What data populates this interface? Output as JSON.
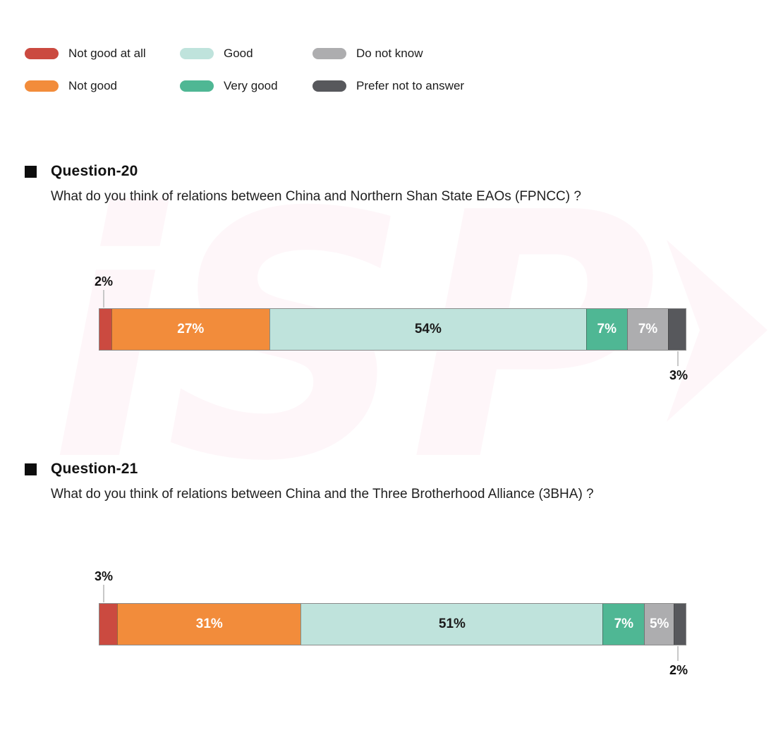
{
  "colors": {
    "not_good_at_all": "#CB4A40",
    "not_good": "#F28C3B",
    "good": "#BFE3DC",
    "very_good": "#4FB794",
    "do_not_know": "#ADADAF",
    "prefer_not_to_answer": "#57585C",
    "callout_tick": "#C8C8C8",
    "text": "#1B1B1B",
    "watermark_pink": "#E24A81"
  },
  "watermark": {
    "text": "iSP"
  },
  "legend": {
    "items": [
      {
        "label": "Not good at all",
        "color": "#CB4A40"
      },
      {
        "label": "Good",
        "color": "#BFE3DC"
      },
      {
        "label": "Do not know",
        "color": "#ADADAF"
      },
      {
        "label": "Not good",
        "color": "#F28C3B"
      },
      {
        "label": "Very good",
        "color": "#4FB794"
      },
      {
        "label": "Prefer not to answer",
        "color": "#57585C"
      }
    ]
  },
  "chart_data": [
    {
      "type": "stacked-bar-horizontal",
      "title": "Question-20",
      "question": "What do you think of  relations between China and Northern Shan State EAOs (FPNCC) ?",
      "xlim": [
        0,
        100
      ],
      "left_callout": "2%",
      "right_callout": "3%",
      "categories": [
        "Not good at all",
        "Not good",
        "Good",
        "Very good",
        "Do not know",
        "Prefer not to answer"
      ],
      "values": [
        2,
        27,
        54,
        7,
        7,
        3
      ],
      "segments": [
        {
          "category": "Not good at all",
          "value": 2,
          "label": "2%",
          "color": "#CB4A40",
          "text_color": "#FFFFFF",
          "label_placement": "above-left"
        },
        {
          "category": "Not good",
          "value": 27,
          "label": "27%",
          "color": "#F28C3B",
          "text_color": "#FFFFFF",
          "label_placement": "inside"
        },
        {
          "category": "Good",
          "value": 54,
          "label": "54%",
          "color": "#BFE3DC",
          "text_color": "#1B1B1B",
          "label_placement": "inside"
        },
        {
          "category": "Very good",
          "value": 7,
          "label": "7%",
          "color": "#4FB794",
          "text_color": "#FFFFFF",
          "label_placement": "inside"
        },
        {
          "category": "Do not know",
          "value": 7,
          "label": "7%",
          "color": "#ADADAF",
          "text_color": "#FFFFFF",
          "label_placement": "inside"
        },
        {
          "category": "Prefer not to answer",
          "value": 3,
          "label": "3%",
          "color": "#57585C",
          "text_color": "#FFFFFF",
          "label_placement": "below-right"
        }
      ]
    },
    {
      "type": "stacked-bar-horizontal",
      "title": "Question-21",
      "question": "What do you think of relations between China and the Three Brotherhood Alliance (3BHA) ?",
      "xlim": [
        0,
        100
      ],
      "left_callout": "3%",
      "right_callout": "2%",
      "categories": [
        "Not good at all",
        "Not good",
        "Good",
        "Very good",
        "Do not know",
        "Prefer not to answer"
      ],
      "values": [
        3,
        31,
        51,
        7,
        5,
        2
      ],
      "segments": [
        {
          "category": "Not good at all",
          "value": 3,
          "label": "3%",
          "color": "#CB4A40",
          "text_color": "#FFFFFF",
          "label_placement": "above-left"
        },
        {
          "category": "Not good",
          "value": 31,
          "label": "31%",
          "color": "#F28C3B",
          "text_color": "#FFFFFF",
          "label_placement": "inside"
        },
        {
          "category": "Good",
          "value": 51,
          "label": "51%",
          "color": "#BFE3DC",
          "text_color": "#1B1B1B",
          "label_placement": "inside"
        },
        {
          "category": "Very good",
          "value": 7,
          "label": "7%",
          "color": "#4FB794",
          "text_color": "#FFFFFF",
          "label_placement": "inside"
        },
        {
          "category": "Do not know",
          "value": 5,
          "label": "5%",
          "color": "#ADADAF",
          "text_color": "#FFFFFF",
          "label_placement": "inside"
        },
        {
          "category": "Prefer not to answer",
          "value": 2,
          "label": "2%",
          "color": "#57585C",
          "text_color": "#FFFFFF",
          "label_placement": "below-right"
        }
      ]
    }
  ]
}
